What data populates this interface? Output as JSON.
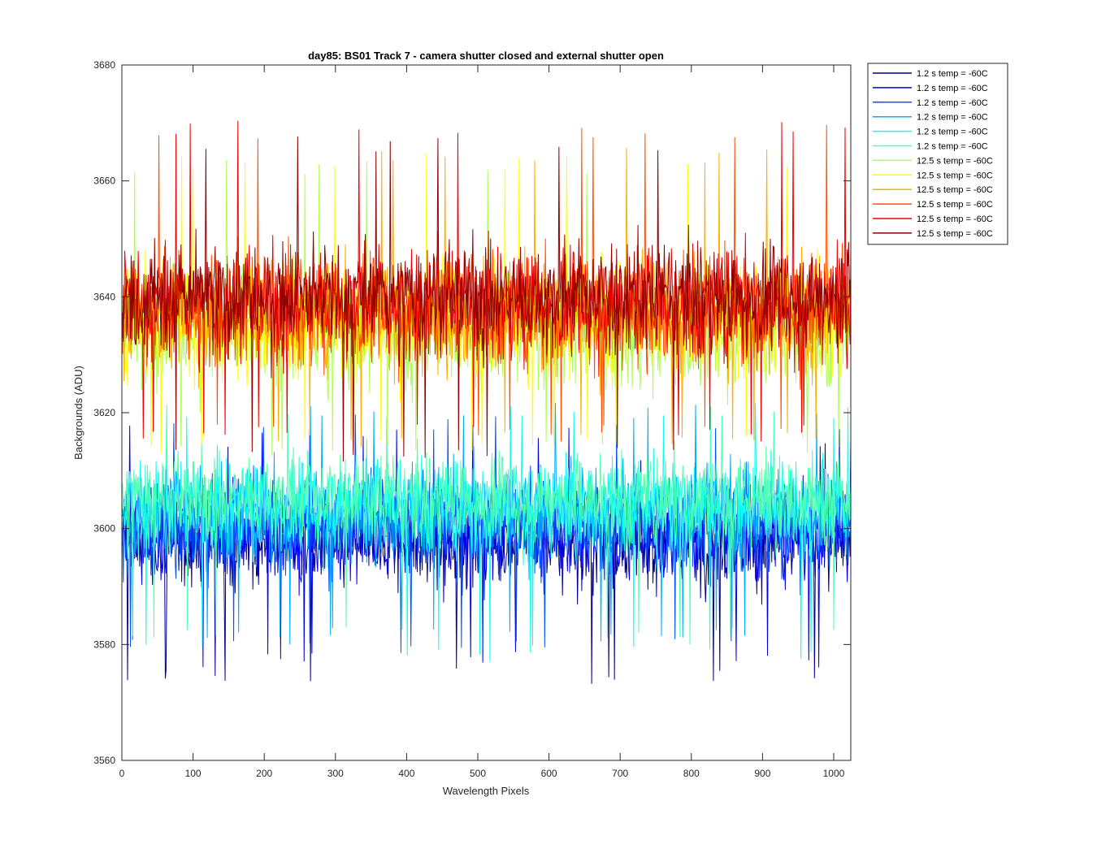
{
  "chart_data": {
    "type": "line",
    "title": "day85: BS01  Track 7 - camera shutter closed and external shutter open",
    "xlabel": "Wavelength Pixels",
    "ylabel": "Backgrounds (ADU)",
    "xlim": [
      0,
      1024
    ],
    "ylim": [
      3560,
      3680
    ],
    "xticks": [
      0,
      100,
      200,
      300,
      400,
      500,
      600,
      700,
      800,
      900,
      1000
    ],
    "yticks": [
      3560,
      3580,
      3600,
      3620,
      3640,
      3660,
      3680
    ],
    "grid": false,
    "legend_position": "outside-top-right",
    "noise_note_hidden": true,
    "series": [
      {
        "name": "1.2 s temp = -60C",
        "color": "#00008f",
        "mean": 3598,
        "spread": 5.5,
        "min": 3573,
        "max": 3616
      },
      {
        "name": "1.2 s temp = -60C",
        "color": "#0000ef",
        "mean": 3599,
        "spread": 5.5,
        "min": 3576,
        "max": 3618
      },
      {
        "name": "1.2 s temp = -60C",
        "color": "#0050ff",
        "mean": 3601,
        "spread": 5.5,
        "min": 3578,
        "max": 3620
      },
      {
        "name": "1.2 s temp = -60C",
        "color": "#00afff",
        "mean": 3603,
        "spread": 5.5,
        "min": 3580,
        "max": 3622
      },
      {
        "name": "1.2 s temp = -60C",
        "color": "#10ffef",
        "mean": 3604,
        "spread": 5.5,
        "min": 3577,
        "max": 3622
      },
      {
        "name": "1.2 s temp = -60C",
        "color": "#50ffaf",
        "mean": 3605,
        "spread": 5.5,
        "min": 3580,
        "max": 3622
      },
      {
        "name": "12.5 s temp = -60C",
        "color": "#afff50",
        "mean": 3634,
        "spread": 6.5,
        "min": 3612,
        "max": 3664
      },
      {
        "name": "12.5 s temp = -60C",
        "color": "#ffff00",
        "mean": 3636,
        "spread": 6.5,
        "min": 3613,
        "max": 3665
      },
      {
        "name": "12.5 s temp = -60C",
        "color": "#ffaf00",
        "mean": 3637,
        "spread": 6.5,
        "min": 3614,
        "max": 3666
      },
      {
        "name": "12.5 s temp = -60C",
        "color": "#ff5000",
        "mean": 3638,
        "spread": 6.5,
        "min": 3615,
        "max": 3670
      },
      {
        "name": "12.5 s temp = -60C",
        "color": "#ef0000",
        "mean": 3639,
        "spread": 6.5,
        "min": 3615,
        "max": 3671
      },
      {
        "name": "12.5 s temp = -60C",
        "color": "#8f0000",
        "mean": 3640,
        "spread": 6.5,
        "min": 3611,
        "max": 3668
      }
    ]
  }
}
